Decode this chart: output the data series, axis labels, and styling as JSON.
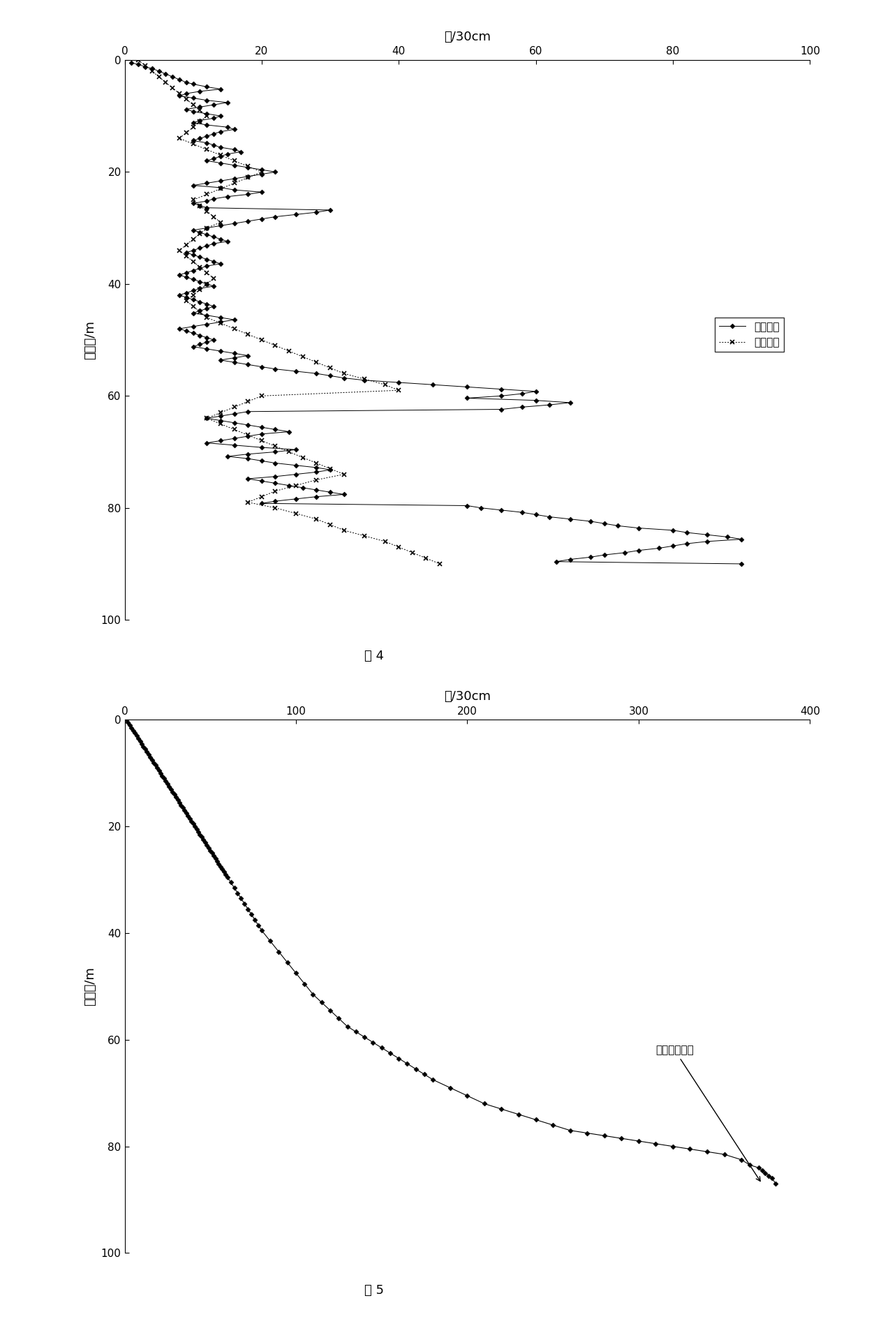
{
  "fig4": {
    "title": "击/30cm",
    "ylabel": "贯入度/m",
    "fig_label": "图 4",
    "xlim": [
      0,
      100
    ],
    "ylim": [
      100,
      0
    ],
    "xticks": [
      0,
      20,
      40,
      60,
      80,
      100
    ],
    "yticks": [
      0,
      20,
      40,
      60,
      80,
      100
    ],
    "observed_x": [
      1,
      2,
      3,
      4,
      5,
      6,
      7,
      8,
      9,
      10,
      12,
      14,
      11,
      9,
      8,
      10,
      12,
      15,
      13,
      11,
      9,
      10,
      12,
      14,
      13,
      11,
      10,
      12,
      15,
      16,
      14,
      13,
      12,
      11,
      10,
      12,
      13,
      14,
      16,
      17,
      15,
      14,
      13,
      12,
      14,
      16,
      18,
      20,
      22,
      20,
      18,
      16,
      14,
      12,
      10,
      14,
      16,
      20,
      18,
      15,
      13,
      12,
      10,
      11,
      12,
      30,
      28,
      25,
      22,
      20,
      18,
      16,
      14,
      12,
      10,
      11,
      12,
      13,
      14,
      15,
      13,
      12,
      11,
      10,
      9,
      10,
      11,
      12,
      13,
      14,
      12,
      11,
      10,
      9,
      8,
      9,
      10,
      11,
      12,
      13,
      11,
      10,
      9,
      8,
      9,
      10,
      11,
      12,
      13,
      12,
      11,
      10,
      12,
      14,
      16,
      14,
      12,
      10,
      8,
      9,
      10,
      11,
      12,
      13,
      12,
      11,
      10,
      12,
      14,
      16,
      18,
      16,
      14,
      16,
      18,
      20,
      22,
      25,
      28,
      30,
      32,
      35,
      40,
      45,
      50,
      55,
      60,
      58,
      55,
      50,
      60,
      65,
      62,
      58,
      55,
      18,
      16,
      14,
      12,
      14,
      16,
      18,
      20,
      22,
      24,
      20,
      18,
      16,
      14,
      12,
      16,
      20,
      25,
      22,
      18,
      15,
      18,
      20,
      22,
      25,
      28,
      30,
      28,
      25,
      22,
      18,
      20,
      22,
      24,
      26,
      28,
      30,
      32,
      28,
      25,
      22,
      20,
      50,
      52,
      55,
      58,
      60,
      62,
      65,
      68,
      70,
      72,
      75,
      80,
      82,
      85,
      88,
      90,
      85,
      82,
      80,
      78,
      75,
      73,
      70,
      68,
      65,
      63,
      90
    ],
    "observed_y": [
      0.5,
      0.8,
      1.2,
      1.5,
      2.0,
      2.5,
      3.0,
      3.5,
      4.0,
      4.3,
      4.8,
      5.2,
      5.6,
      6.0,
      6.4,
      6.8,
      7.2,
      7.6,
      8.0,
      8.4,
      8.8,
      9.2,
      9.6,
      10.0,
      10.4,
      10.8,
      11.2,
      11.6,
      12.0,
      12.4,
      12.8,
      13.2,
      13.6,
      14.0,
      14.4,
      14.8,
      15.2,
      15.6,
      16.0,
      16.4,
      16.8,
      17.2,
      17.6,
      18.0,
      18.4,
      18.8,
      19.2,
      19.6,
      20.0,
      20.4,
      20.8,
      21.2,
      21.6,
      22.0,
      22.4,
      22.8,
      23.2,
      23.6,
      24.0,
      24.4,
      24.8,
      25.2,
      25.6,
      26.0,
      26.4,
      26.8,
      27.2,
      27.6,
      28.0,
      28.4,
      28.8,
      29.2,
      29.6,
      30.0,
      30.4,
      30.8,
      31.2,
      31.6,
      32.0,
      32.4,
      32.8,
      33.2,
      33.6,
      34.0,
      34.4,
      34.8,
      35.2,
      35.6,
      36.0,
      36.4,
      36.8,
      37.2,
      37.6,
      38.0,
      38.4,
      38.8,
      39.2,
      39.6,
      40.0,
      40.4,
      40.8,
      41.2,
      41.6,
      42.0,
      42.4,
      42.8,
      43.2,
      43.6,
      44.0,
      44.4,
      44.8,
      45.2,
      45.6,
      46.0,
      46.4,
      46.8,
      47.2,
      47.6,
      48.0,
      48.4,
      48.8,
      49.2,
      49.6,
      50.0,
      50.4,
      50.8,
      51.2,
      51.6,
      52.0,
      52.4,
      52.8,
      53.2,
      53.6,
      54.0,
      54.4,
      54.8,
      55.2,
      55.6,
      56.0,
      56.4,
      56.8,
      57.2,
      57.6,
      58.0,
      58.4,
      58.8,
      59.2,
      59.6,
      60.0,
      60.4,
      60.8,
      61.2,
      61.6,
      62.0,
      62.4,
      62.8,
      63.2,
      63.6,
      64.0,
      64.4,
      64.8,
      65.2,
      65.6,
      66.0,
      66.4,
      66.8,
      67.2,
      67.6,
      68.0,
      68.4,
      68.8,
      69.2,
      69.6,
      70.0,
      70.4,
      70.8,
      71.2,
      71.6,
      72.0,
      72.4,
      72.8,
      73.2,
      73.6,
      74.0,
      74.4,
      74.8,
      75.2,
      75.6,
      76.0,
      76.4,
      76.8,
      77.2,
      77.6,
      78.0,
      78.4,
      78.8,
      79.2,
      79.6,
      80.0,
      80.4,
      80.8,
      81.2,
      81.6,
      82.0,
      82.4,
      82.8,
      83.2,
      83.6,
      84.0,
      84.4,
      84.8,
      85.2,
      85.6,
      86.0,
      86.4,
      86.8,
      87.2,
      87.6,
      88.0,
      88.4,
      88.8,
      89.2,
      89.6,
      90.0
    ],
    "analysis_x": [
      2,
      3,
      4,
      5,
      6,
      7,
      8,
      9,
      10,
      11,
      12,
      11,
      10,
      9,
      8,
      10,
      12,
      14,
      16,
      18,
      20,
      18,
      16,
      14,
      12,
      10,
      11,
      12,
      13,
      14,
      12,
      11,
      10,
      9,
      8,
      9,
      10,
      11,
      12,
      13,
      12,
      11,
      10,
      9,
      10,
      11,
      12,
      14,
      16,
      18,
      20,
      22,
      24,
      26,
      28,
      30,
      32,
      35,
      38,
      40,
      20,
      18,
      16,
      14,
      12,
      14,
      16,
      18,
      20,
      22,
      24,
      26,
      28,
      30,
      32,
      28,
      25,
      22,
      20,
      18,
      22,
      25,
      28,
      30,
      32,
      35,
      38,
      40,
      42,
      44,
      46
    ],
    "analysis_y": [
      0.0,
      1.0,
      2.0,
      3.0,
      4.0,
      5.0,
      6.0,
      7.0,
      8.0,
      9.0,
      10.0,
      11.0,
      12.0,
      13.0,
      14.0,
      15.0,
      16.0,
      17.0,
      18.0,
      19.0,
      20.0,
      21.0,
      22.0,
      23.0,
      24.0,
      25.0,
      26.0,
      27.0,
      28.0,
      29.0,
      30.0,
      31.0,
      32.0,
      33.0,
      34.0,
      35.0,
      36.0,
      37.0,
      38.0,
      39.0,
      40.0,
      41.0,
      42.0,
      43.0,
      44.0,
      45.0,
      46.0,
      47.0,
      48.0,
      49.0,
      50.0,
      51.0,
      52.0,
      53.0,
      54.0,
      55.0,
      56.0,
      57.0,
      58.0,
      59.0,
      60.0,
      61.0,
      62.0,
      63.0,
      64.0,
      65.0,
      66.0,
      67.0,
      68.0,
      69.0,
      70.0,
      71.0,
      72.0,
      73.0,
      74.0,
      75.0,
      76.0,
      77.0,
      78.0,
      79.0,
      80.0,
      81.0,
      82.0,
      83.0,
      84.0,
      85.0,
      86.0,
      87.0,
      88.0,
      89.0,
      90.0
    ],
    "legend_observed": "观测数据",
    "legend_analysis": "分析结果"
  },
  "fig5": {
    "title": "击/30cm",
    "ylabel": "贯入度/m",
    "fig_label": "图 5",
    "xlim": [
      0,
      400
    ],
    "ylim": [
      100,
      0
    ],
    "xticks": [
      0,
      100,
      200,
      300,
      400
    ],
    "yticks": [
      0,
      20,
      40,
      60,
      80,
      100
    ],
    "annotation": "出现拓罘现象",
    "data_x": [
      1,
      2,
      3,
      4,
      5,
      6,
      7,
      8,
      9,
      10,
      11,
      12,
      13,
      14,
      15,
      16,
      17,
      18,
      19,
      20,
      21,
      22,
      23,
      24,
      25,
      26,
      27,
      28,
      29,
      30,
      31,
      32,
      33,
      34,
      35,
      36,
      37,
      38,
      39,
      40,
      41,
      42,
      43,
      44,
      45,
      46,
      47,
      48,
      49,
      50,
      51,
      52,
      53,
      54,
      55,
      56,
      57,
      58,
      59,
      60,
      62,
      64,
      66,
      68,
      70,
      72,
      74,
      76,
      78,
      80,
      85,
      90,
      95,
      100,
      105,
      110,
      115,
      120,
      125,
      130,
      135,
      140,
      145,
      150,
      155,
      160,
      165,
      170,
      175,
      180,
      190,
      200,
      210,
      220,
      230,
      240,
      250,
      260,
      270,
      280,
      290,
      300,
      310,
      320,
      330,
      340,
      350,
      360,
      365,
      370,
      372,
      374,
      376,
      378,
      380
    ],
    "data_y": [
      0,
      0.5,
      1.0,
      1.5,
      2.0,
      2.5,
      3.0,
      3.5,
      4.0,
      4.5,
      5.0,
      5.5,
      6.0,
      6.5,
      7.0,
      7.5,
      8.0,
      8.5,
      9.0,
      9.5,
      10.0,
      10.5,
      11.0,
      11.5,
      12.0,
      12.5,
      13.0,
      13.5,
      14.0,
      14.5,
      15.0,
      15.5,
      16.0,
      16.5,
      17.0,
      17.5,
      18.0,
      18.5,
      19.0,
      19.5,
      20.0,
      20.5,
      21.0,
      21.5,
      22.0,
      22.5,
      23.0,
      23.5,
      24.0,
      24.5,
      25.0,
      25.5,
      26.0,
      26.5,
      27.0,
      27.5,
      28.0,
      28.5,
      29.0,
      29.5,
      30.5,
      31.5,
      32.5,
      33.5,
      34.5,
      35.5,
      36.5,
      37.5,
      38.5,
      39.5,
      41.5,
      43.5,
      45.5,
      47.5,
      49.5,
      51.5,
      53.0,
      54.5,
      56.0,
      57.5,
      58.5,
      59.5,
      60.5,
      61.5,
      62.5,
      63.5,
      64.5,
      65.5,
      66.5,
      67.5,
      69.0,
      70.5,
      72.0,
      73.0,
      74.0,
      75.0,
      76.0,
      77.0,
      77.5,
      78.0,
      78.5,
      79.0,
      79.5,
      80.0,
      80.5,
      81.0,
      81.5,
      82.5,
      83.5,
      84.0,
      84.5,
      85.0,
      85.5,
      86.0,
      87.0
    ]
  }
}
